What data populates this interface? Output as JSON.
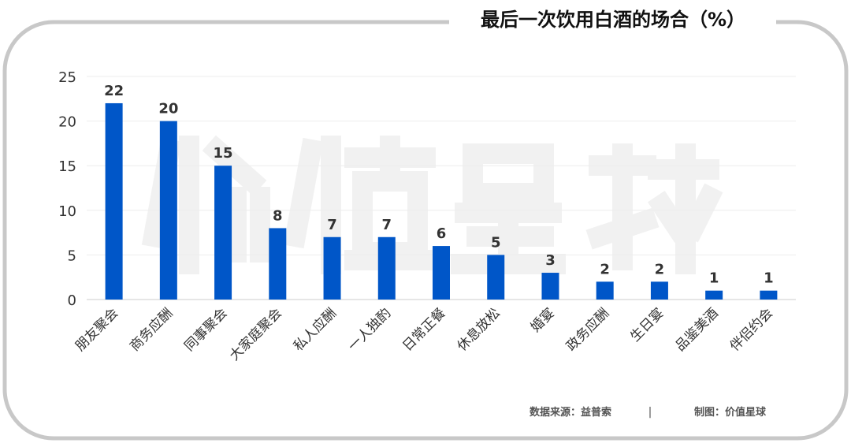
{
  "chart_data": {
    "type": "bar",
    "title": "最后一次饮用白酒的场合（%）",
    "categories": [
      "朋友聚会",
      "商务应酬",
      "同事聚会",
      "大家庭聚会",
      "私人应酬",
      "一人独酌",
      "日常正餐",
      "休息放松",
      "婚宴",
      "政务应酬",
      "生日宴",
      "品鉴美酒",
      "伴侣约会"
    ],
    "values": [
      22,
      20,
      15,
      8,
      7,
      7,
      6,
      5,
      3,
      2,
      2,
      1,
      1
    ],
    "yticks": [
      0,
      5,
      10,
      15,
      20,
      25
    ],
    "ylim": [
      0,
      25
    ],
    "grid": true,
    "bar_color": "#0056c8",
    "xlabel": "",
    "ylabel": ""
  },
  "source": "数据来源：益普索",
  "separator": "|",
  "credit": "制图：价值星球",
  "watermark": "价值星球"
}
